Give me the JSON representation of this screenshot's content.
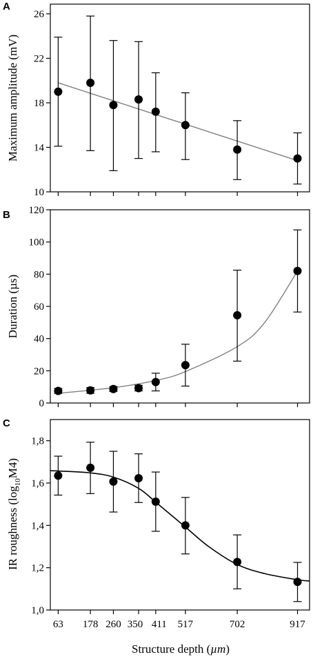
{
  "chart_data": [
    {
      "panel": "A",
      "type": "scatter",
      "ylabel": "Maximum amplitude (mV)",
      "ylim": [
        10,
        26
      ],
      "yticks": [
        10,
        14,
        18,
        22,
        26
      ],
      "x": [
        63,
        178,
        260,
        350,
        411,
        517,
        702,
        917
      ],
      "series": [
        {
          "y": [
            19.0,
            19.8,
            17.8,
            18.3,
            17.2,
            16.0,
            13.8,
            13.0
          ],
          "err_low": [
            14.1,
            13.7,
            11.9,
            13.0,
            13.6,
            12.9,
            11.1,
            10.7
          ],
          "err_high": [
            23.9,
            25.8,
            23.6,
            23.5,
            20.7,
            18.9,
            16.4,
            15.3
          ]
        }
      ],
      "fit": {
        "kind": "linear",
        "color": "#808080",
        "x": [
          63,
          917
        ],
        "y": [
          19.8,
          12.8
        ]
      }
    },
    {
      "panel": "B",
      "type": "scatter",
      "ylabel": "Duration (µs)",
      "ylim": [
        0,
        120
      ],
      "yticks": [
        0,
        20,
        40,
        60,
        80,
        100,
        120
      ],
      "x": [
        63,
        178,
        260,
        350,
        411,
        517,
        702,
        917
      ],
      "series": [
        {
          "y": [
            7.5,
            7.8,
            8.7,
            9.2,
            13.0,
            23.5,
            54.5,
            82.0
          ],
          "err_low": [
            6.0,
            6.0,
            7.2,
            7.5,
            7.5,
            10.5,
            26.0,
            56.5
          ],
          "err_high": [
            9.0,
            9.6,
            10.2,
            11.0,
            18.5,
            36.5,
            82.5,
            107.5
          ]
        }
      ],
      "fit": {
        "kind": "exponential",
        "color": "#808080",
        "x": [
          63,
          260,
          411,
          517,
          702,
          800,
          917
        ],
        "y": [
          6.0,
          9.5,
          14.0,
          19.5,
          35.0,
          50.0,
          82.0
        ]
      }
    },
    {
      "panel": "C",
      "type": "scatter",
      "ylabel": "IR roughness (log",
      "ylabel_sub": "10",
      "ylabel_tail": "M4)",
      "ylim": [
        1.0,
        1.9
      ],
      "yticks": [
        "1,0",
        "1,2",
        "1,4",
        "1,6",
        "1,8"
      ],
      "xlabel": "Structure depth (",
      "xlabel_unit": "µm",
      "xlabel_tail": ")",
      "xticks": [
        "63",
        "178",
        "260",
        "350",
        "411",
        "517",
        "702",
        "917"
      ],
      "x": [
        63,
        178,
        260,
        350,
        411,
        517,
        702,
        917
      ],
      "series": [
        {
          "y": [
            1.635,
            1.672,
            1.607,
            1.623,
            1.512,
            1.4,
            1.227,
            1.133
          ],
          "err_low": [
            1.543,
            1.55,
            1.463,
            1.508,
            1.372,
            1.265,
            1.1,
            1.04
          ],
          "err_high": [
            1.727,
            1.793,
            1.75,
            1.738,
            1.652,
            1.532,
            1.355,
            1.225
          ]
        }
      ],
      "fit": {
        "kind": "sigmoid",
        "color": "#000000",
        "x": [
          35,
          63,
          178,
          260,
          350,
          411,
          517,
          600,
          702,
          800,
          917,
          960
        ],
        "y": [
          1.658,
          1.657,
          1.648,
          1.628,
          1.575,
          1.51,
          1.392,
          1.3,
          1.215,
          1.172,
          1.143,
          1.137
        ]
      }
    }
  ],
  "panel_labels": {
    "a": "A",
    "b": "B",
    "c": "C"
  },
  "x_range": [
    35,
    960
  ]
}
